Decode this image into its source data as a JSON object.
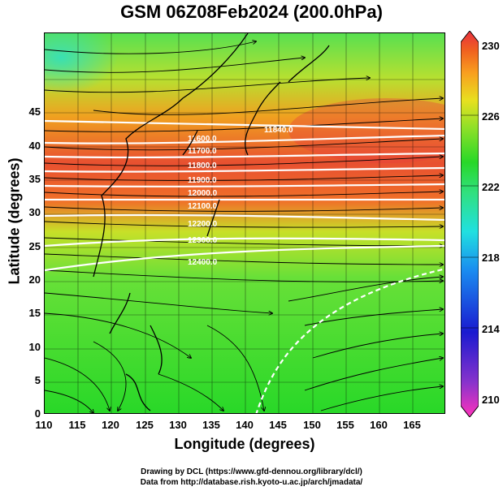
{
  "title": "GSM 06Z08Feb2024 (200.0hPa)",
  "axes": {
    "xlabel": "Longitude (degrees)",
    "ylabel": "Latitude  (degrees)",
    "xticks": [
      "110",
      "115",
      "120",
      "125",
      "130",
      "135",
      "140",
      "145",
      "150",
      "155",
      "160",
      "165"
    ],
    "yticks": [
      "0",
      "5",
      "10",
      "15",
      "20",
      "25",
      "30",
      "35",
      "40",
      "45"
    ]
  },
  "colorbar": {
    "ticks": [
      "230",
      "226",
      "222",
      "218",
      "214",
      "210"
    ],
    "colors": [
      "#ff33bb",
      "#8833cc",
      "#1a1ad0",
      "#1a8cf0",
      "#20e0e0",
      "#30e080",
      "#28d828",
      "#90e028",
      "#e8e020",
      "#f8a020",
      "#f06020",
      "#e83040"
    ]
  },
  "contour_labels": [
    "11700.0",
    "11800.0",
    "11900.0",
    "12000.0",
    "12100.0",
    "11600.0",
    "12200.0",
    "12300.0",
    "12400.0",
    "11840.0"
  ],
  "credits": {
    "line1": "Drawing by DCL (https://www.gfd-dennou.org/library/dcl/)",
    "line2": "Data from http://database.rish.kyoto-u.ac.jp/arch/jmadata/"
  }
}
